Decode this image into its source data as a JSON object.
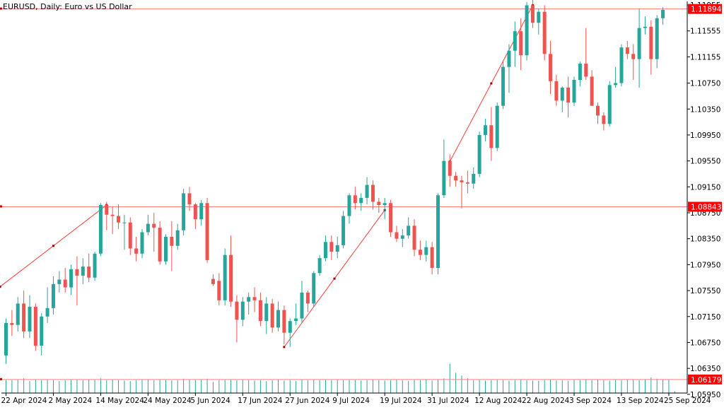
{
  "window": {
    "symbol_label": "EURUSD, Daily:  Euro vs US Dollar"
  },
  "colors": {
    "background": "#ffffff",
    "bull": "#26a69a",
    "bear": "#ef5350",
    "hline": "#ff7f7f",
    "price_tag_bg": "#ff0000",
    "price_tag_text": "#ffffff",
    "axis_text": "#000000",
    "volume": "#26a69a"
  },
  "chart_data": {
    "type": "candlestick",
    "timeframe": "Daily",
    "ylim": [
      1.0597,
      1.1201
    ],
    "price_ticks": [
      "1.11955",
      "1.11555",
      "1.11155",
      "1.10750",
      "1.10350",
      "1.09950",
      "1.09550",
      "1.09150",
      "1.08750",
      "1.08350",
      "1.07950",
      "1.07550",
      "1.07150",
      "1.06750",
      "1.06350",
      "1.05950"
    ],
    "date_ticks": [
      "22 Apr 2024",
      "2 May 2024",
      "14 May 2024",
      "24 May 2024",
      "5 Jun 2024",
      "17 Jun 2024",
      "27 Jun 2024",
      "9 Jul 2024",
      "19 Jul 2024",
      "31 Jul 2024",
      "12 Aug 2024",
      "22 Aug 2024",
      "3 Sep 2024",
      "13 Sep 2024",
      "25 Sep 2024"
    ],
    "date_tick_bar_index": [
      0,
      8,
      16,
      24,
      32,
      40,
      48,
      56,
      64,
      72,
      80,
      88,
      96,
      104,
      112
    ],
    "horizontal_lines": [
      {
        "price": 1.11894,
        "label": "1.11894"
      },
      {
        "price": 1.08843,
        "label": "1.08843"
      },
      {
        "price": 1.06179,
        "label": "1.06179"
      }
    ],
    "trendlines": [
      {
        "from": {
          "bar": -1,
          "price": 1.0761
        },
        "to": {
          "bar": 17,
          "price": 1.0887
        }
      },
      {
        "from": {
          "bar": 47,
          "price": 1.0668
        },
        "to": {
          "bar": 64,
          "price": 1.0879
        }
      },
      {
        "from": {
          "bar": 75,
          "price": 1.0954
        },
        "to": {
          "bar": 89,
          "price": 1.1195
        }
      }
    ],
    "candles": [
      {
        "o": 1.0655,
        "h": 1.0712,
        "l": 1.0642,
        "c": 1.0705
      },
      {
        "o": 1.0705,
        "h": 1.0725,
        "l": 1.0685,
        "c": 1.0702
      },
      {
        "o": 1.0702,
        "h": 1.0745,
        "l": 1.0692,
        "c": 1.0735
      },
      {
        "o": 1.0735,
        "h": 1.0755,
        "l": 1.0682,
        "c": 1.0692
      },
      {
        "o": 1.0692,
        "h": 1.0748,
        "l": 1.0682,
        "c": 1.073
      },
      {
        "o": 1.073,
        "h": 1.0735,
        "l": 1.0662,
        "c": 1.067
      },
      {
        "o": 1.067,
        "h": 1.072,
        "l": 1.0655,
        "c": 1.0715
      },
      {
        "o": 1.0715,
        "h": 1.076,
        "l": 1.0705,
        "c": 1.0728
      },
      {
        "o": 1.0728,
        "h": 1.0777,
        "l": 1.0718,
        "c": 1.0765
      },
      {
        "o": 1.0765,
        "h": 1.0785,
        "l": 1.0752,
        "c": 1.0772
      },
      {
        "o": 1.0772,
        "h": 1.079,
        "l": 1.0752,
        "c": 1.076
      },
      {
        "o": 1.076,
        "h": 1.0795,
        "l": 1.0748,
        "c": 1.0788
      },
      {
        "o": 1.0788,
        "h": 1.0808,
        "l": 1.0732,
        "c": 1.0778
      },
      {
        "o": 1.0778,
        "h": 1.0805,
        "l": 1.0765,
        "c": 1.0792
      },
      {
        "o": 1.0792,
        "h": 1.0812,
        "l": 1.0768,
        "c": 1.0775
      },
      {
        "o": 1.0775,
        "h": 1.0815,
        "l": 1.077,
        "c": 1.0812
      },
      {
        "o": 1.0812,
        "h": 1.089,
        "l": 1.0808,
        "c": 1.0887
      },
      {
        "o": 1.0887,
        "h": 1.0892,
        "l": 1.0848,
        "c": 1.0872
      },
      {
        "o": 1.0872,
        "h": 1.0885,
        "l": 1.0842,
        "c": 1.087
      },
      {
        "o": 1.087,
        "h": 1.0888,
        "l": 1.085,
        "c": 1.086
      },
      {
        "o": 1.086,
        "h": 1.0872,
        "l": 1.0818,
        "c": 1.086
      },
      {
        "o": 1.086,
        "h": 1.0868,
        "l": 1.081,
        "c": 1.082
      },
      {
        "o": 1.082,
        "h": 1.0838,
        "l": 1.08,
        "c": 1.0812
      },
      {
        "o": 1.0812,
        "h": 1.085,
        "l": 1.0805,
        "c": 1.0845
      },
      {
        "o": 1.0845,
        "h": 1.0872,
        "l": 1.084,
        "c": 1.0858
      },
      {
        "o": 1.0858,
        "h": 1.0875,
        "l": 1.0815,
        "c": 1.0852
      },
      {
        "o": 1.0852,
        "h": 1.0862,
        "l": 1.0795,
        "c": 1.08
      },
      {
        "o": 1.08,
        "h": 1.0842,
        "l": 1.0795,
        "c": 1.0838
      },
      {
        "o": 1.0838,
        "h": 1.0862,
        "l": 1.0785,
        "c": 1.0824
      },
      {
        "o": 1.0824,
        "h": 1.0858,
        "l": 1.0818,
        "c": 1.0848
      },
      {
        "o": 1.0848,
        "h": 1.0912,
        "l": 1.084,
        "c": 1.0905
      },
      {
        "o": 1.0905,
        "h": 1.0915,
        "l": 1.0878,
        "c": 1.0888
      },
      {
        "o": 1.0888,
        "h": 1.089,
        "l": 1.085,
        "c": 1.0865
      },
      {
        "o": 1.0865,
        "h": 1.0895,
        "l": 1.0855,
        "c": 1.089
      },
      {
        "o": 1.089,
        "h": 1.0898,
        "l": 1.0798,
        "c": 1.0802
      },
      {
        "o": 1.0773,
        "h": 1.078,
        "l": 1.0762,
        "c": 1.0765
      },
      {
        "o": 1.077,
        "h": 1.0782,
        "l": 1.0732,
        "c": 1.074
      },
      {
        "o": 1.074,
        "h": 1.082,
        "l": 1.0732,
        "c": 1.081
      },
      {
        "o": 1.081,
        "h": 1.084,
        "l": 1.073,
        "c": 1.0738
      },
      {
        "o": 1.0738,
        "h": 1.0748,
        "l": 1.0675,
        "c": 1.071
      },
      {
        "o": 1.071,
        "h": 1.0745,
        "l": 1.07,
        "c": 1.0738
      },
      {
        "o": 1.0738,
        "h": 1.0752,
        "l": 1.0718,
        "c": 1.0745
      },
      {
        "o": 1.0745,
        "h": 1.076,
        "l": 1.0722,
        "c": 1.074
      },
      {
        "o": 1.074,
        "h": 1.0752,
        "l": 1.07,
        "c": 1.0708
      },
      {
        "o": 1.0708,
        "h": 1.0745,
        "l": 1.0688,
        "c": 1.0735
      },
      {
        "o": 1.0735,
        "h": 1.0742,
        "l": 1.069,
        "c": 1.0698
      },
      {
        "o": 1.0698,
        "h": 1.0738,
        "l": 1.0692,
        "c": 1.0725
      },
      {
        "o": 1.0725,
        "h": 1.0732,
        "l": 1.0672,
        "c": 1.069
      },
      {
        "o": 1.069,
        "h": 1.0712,
        "l": 1.0668,
        "c": 1.0708
      },
      {
        "o": 1.0708,
        "h": 1.0735,
        "l": 1.0702,
        "c": 1.0712
      },
      {
        "o": 1.0712,
        "h": 1.077,
        "l": 1.0705,
        "c": 1.0752
      },
      {
        "o": 1.0752,
        "h": 1.0755,
        "l": 1.0722,
        "c": 1.0735
      },
      {
        "o": 1.0735,
        "h": 1.0785,
        "l": 1.073,
        "c": 1.0782
      },
      {
        "o": 1.0782,
        "h": 1.081,
        "l": 1.0778,
        "c": 1.0805
      },
      {
        "o": 1.0805,
        "h": 1.084,
        "l": 1.08,
        "c": 1.083
      },
      {
        "o": 1.083,
        "h": 1.084,
        "l": 1.0802,
        "c": 1.0815
      },
      {
        "o": 1.0815,
        "h": 1.0838,
        "l": 1.0805,
        "c": 1.0825
      },
      {
        "o": 1.0825,
        "h": 1.0878,
        "l": 1.082,
        "c": 1.087
      },
      {
        "o": 1.087,
        "h": 1.0905,
        "l": 1.0858,
        "c": 1.0902
      },
      {
        "o": 1.0902,
        "h": 1.0915,
        "l": 1.088,
        "c": 1.089
      },
      {
        "o": 1.089,
        "h": 1.0905,
        "l": 1.0878,
        "c": 1.0898
      },
      {
        "o": 1.0898,
        "h": 1.093,
        "l": 1.0888,
        "c": 1.0918
      },
      {
        "o": 1.0918,
        "h": 1.0925,
        "l": 1.088,
        "c": 1.0892
      },
      {
        "o": 1.0892,
        "h": 1.0898,
        "l": 1.0875,
        "c": 1.0887
      },
      {
        "o": 1.0887,
        "h": 1.0898,
        "l": 1.0865,
        "c": 1.089
      },
      {
        "o": 1.089,
        "h": 1.0895,
        "l": 1.0838,
        "c": 1.0845
      },
      {
        "o": 1.0845,
        "h": 1.0855,
        "l": 1.083,
        "c": 1.0835
      },
      {
        "o": 1.0835,
        "h": 1.085,
        "l": 1.0822,
        "c": 1.084
      },
      {
        "o": 1.084,
        "h": 1.0868,
        "l": 1.0835,
        "c": 1.0855
      },
      {
        "o": 1.0855,
        "h": 1.0865,
        "l": 1.0808,
        "c": 1.0818
      },
      {
        "o": 1.0818,
        "h": 1.0832,
        "l": 1.0802,
        "c": 1.081
      },
      {
        "o": 1.081,
        "h": 1.0832,
        "l": 1.08,
        "c": 1.0822
      },
      {
        "o": 1.0822,
        "h": 1.083,
        "l": 1.078,
        "c": 1.079
      },
      {
        "o": 1.079,
        "h": 1.0905,
        "l": 1.078,
        "c": 1.0902
      },
      {
        "o": 1.0902,
        "h": 1.0988,
        "l": 1.0898,
        "c": 1.0955
      },
      {
        "o": 1.0955,
        "h": 1.0965,
        "l": 1.0915,
        "c": 1.0932
      },
      {
        "o": 1.0932,
        "h": 1.0938,
        "l": 1.0915,
        "c": 1.0925
      },
      {
        "o": 1.0925,
        "h": 1.0932,
        "l": 1.0882,
        "c": 1.0922
      },
      {
        "o": 1.0922,
        "h": 1.094,
        "l": 1.0905,
        "c": 1.092
      },
      {
        "o": 1.092,
        "h": 1.0945,
        "l": 1.0912,
        "c": 1.0935
      },
      {
        "o": 1.0935,
        "h": 1.1,
        "l": 1.093,
        "c": 1.0995
      },
      {
        "o": 1.0995,
        "h": 1.102,
        "l": 1.0985,
        "c": 1.101
      },
      {
        "o": 1.101,
        "h": 1.1038,
        "l": 1.0955,
        "c": 1.0975
      },
      {
        "o": 1.0975,
        "h": 1.1045,
        "l": 1.097,
        "c": 1.104
      },
      {
        "o": 1.104,
        "h": 1.111,
        "l": 1.1035,
        "c": 1.11
      },
      {
        "o": 1.11,
        "h": 1.1135,
        "l": 1.106,
        "c": 1.1125
      },
      {
        "o": 1.1125,
        "h": 1.117,
        "l": 1.11,
        "c": 1.1155
      },
      {
        "o": 1.1155,
        "h": 1.1175,
        "l": 1.1095,
        "c": 1.1118
      },
      {
        "o": 1.1118,
        "h": 1.12,
        "l": 1.111,
        "c": 1.1195
      },
      {
        "o": 1.1195,
        "h": 1.1205,
        "l": 1.116,
        "c": 1.1168
      },
      {
        "o": 1.1168,
        "h": 1.119,
        "l": 1.115,
        "c": 1.1185
      },
      {
        "o": 1.1185,
        "h": 1.1195,
        "l": 1.111,
        "c": 1.112
      },
      {
        "o": 1.112,
        "h": 1.114,
        "l": 1.1058,
        "c": 1.1078
      },
      {
        "o": 1.1078,
        "h": 1.1088,
        "l": 1.104,
        "c": 1.1048
      },
      {
        "o": 1.1048,
        "h": 1.107,
        "l": 1.103,
        "c": 1.1068
      },
      {
        "o": 1.1068,
        "h": 1.1085,
        "l": 1.1022,
        "c": 1.1045
      },
      {
        "o": 1.1045,
        "h": 1.1085,
        "l": 1.104,
        "c": 1.108
      },
      {
        "o": 1.108,
        "h": 1.1108,
        "l": 1.107,
        "c": 1.1105
      },
      {
        "o": 1.1105,
        "h": 1.116,
        "l": 1.108,
        "c": 1.1085
      },
      {
        "o": 1.1085,
        "h": 1.1095,
        "l": 1.104,
        "c": 1.104
      },
      {
        "o": 1.104,
        "h": 1.1045,
        "l": 1.1012,
        "c": 1.1025
      },
      {
        "o": 1.1025,
        "h": 1.103,
        "l": 1.1002,
        "c": 1.1012
      },
      {
        "o": 1.1012,
        "h": 1.1078,
        "l": 1.1008,
        "c": 1.1072
      },
      {
        "o": 1.1072,
        "h": 1.11,
        "l": 1.1068,
        "c": 1.1075
      },
      {
        "o": 1.1075,
        "h": 1.1135,
        "l": 1.107,
        "c": 1.113
      },
      {
        "o": 1.113,
        "h": 1.114,
        "l": 1.1112,
        "c": 1.112
      },
      {
        "o": 1.112,
        "h": 1.1135,
        "l": 1.108,
        "c": 1.1112
      },
      {
        "o": 1.1112,
        "h": 1.119,
        "l": 1.1068,
        "c": 1.116
      },
      {
        "o": 1.116,
        "h": 1.1178,
        "l": 1.115,
        "c": 1.1162
      },
      {
        "o": 1.1162,
        "h": 1.1172,
        "l": 1.1088,
        "c": 1.1112
      },
      {
        "o": 1.1112,
        "h": 1.118,
        "l": 1.1098,
        "c": 1.1175
      },
      {
        "o": 1.1175,
        "h": 1.1192,
        "l": 1.1165,
        "c": 1.1188
      }
    ],
    "volume_ratios": [
      0.7,
      0.7,
      0.75,
      0.8,
      0.65,
      0.75,
      0.7,
      0.75,
      0.7,
      0.65,
      0.7,
      0.72,
      0.75,
      0.7,
      0.75,
      0.72,
      0.8,
      0.7,
      0.72,
      0.7,
      0.68,
      0.65,
      0.7,
      0.72,
      0.75,
      0.7,
      0.72,
      0.7,
      0.68,
      0.7,
      0.78,
      0.72,
      0.7,
      0.72,
      0.78,
      0.6,
      0.7,
      0.75,
      0.72,
      0.7,
      0.72,
      0.7,
      0.68,
      0.7,
      0.65,
      0.7,
      0.72,
      0.68,
      0.7,
      0.66,
      0.72,
      0.7,
      0.72,
      0.7,
      0.72,
      0.7,
      0.72,
      0.7,
      0.72,
      0.7,
      0.68,
      0.7,
      0.72,
      0.7,
      0.68,
      0.7,
      0.72,
      0.7,
      0.65,
      0.72,
      0.7,
      0.75,
      0.68,
      0.72,
      0.8,
      1.6,
      1.1,
      0.95,
      0.8,
      0.7,
      0.72,
      0.68,
      0.7,
      0.72,
      0.7,
      0.68,
      0.7,
      0.72,
      0.7,
      0.68,
      0.66,
      0.7,
      0.72,
      0.68,
      0.7,
      0.66,
      0.72,
      0.7,
      0.75,
      0.7,
      0.72,
      0.7,
      0.68,
      0.72,
      0.7,
      0.75,
      0.72,
      0.7,
      0.72,
      0.85,
      0.78,
      0.72,
      0.75,
      0.1
    ]
  }
}
